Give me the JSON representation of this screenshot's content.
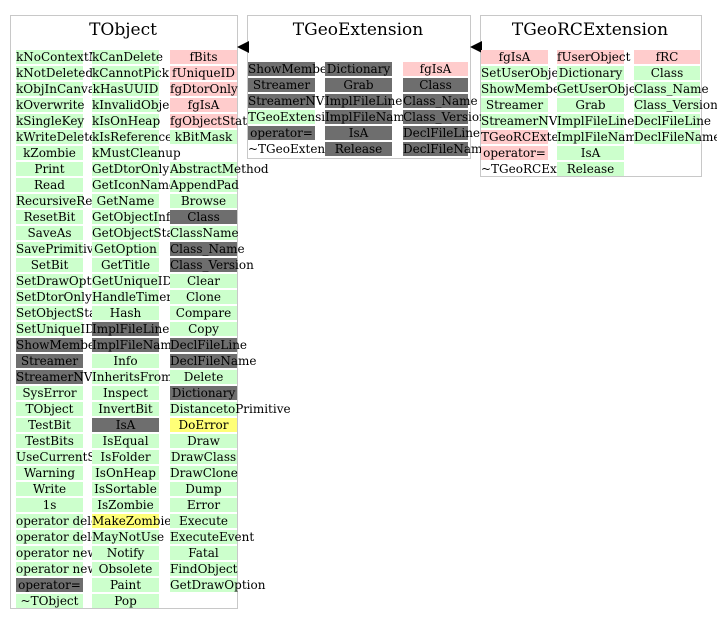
{
  "classes": [
    {
      "title": "TObject",
      "columns": [
        [
          [
            "kNoContextMenu",
            "g"
          ],
          [
            "kNotDeleted",
            "g"
          ],
          [
            "kObjInCanvas",
            "g"
          ],
          [
            "kOverwrite",
            "g"
          ],
          [
            "kSingleKey",
            "g"
          ],
          [
            "kWriteDelete",
            "g"
          ],
          [
            "kZombie",
            "g"
          ],
          [
            "Print",
            "g"
          ],
          [
            "Read",
            "g"
          ],
          [
            "RecursiveRemove",
            "g"
          ],
          [
            "ResetBit",
            "g"
          ],
          [
            "SaveAs",
            "g"
          ],
          [
            "SavePrimitive",
            "g"
          ],
          [
            "SetBit",
            "g"
          ],
          [
            "SetDrawOption",
            "g"
          ],
          [
            "SetDtorOnly",
            "g"
          ],
          [
            "SetObjectStat",
            "g"
          ],
          [
            "SetUniqueID",
            "g"
          ],
          [
            "ShowMembers",
            "d"
          ],
          [
            "Streamer",
            "d"
          ],
          [
            "StreamerNVirtual",
            "d"
          ],
          [
            "SysError",
            "g"
          ],
          [
            "TObject",
            "g"
          ],
          [
            "TestBit",
            "g"
          ],
          [
            "TestBits",
            "g"
          ],
          [
            "UseCurrentStyle",
            "g"
          ],
          [
            "Warning",
            "g"
          ],
          [
            "Write",
            "g"
          ],
          [
            "1s",
            "g"
          ],
          [
            "operator delete",
            "g"
          ],
          [
            "operator delete[]",
            "g"
          ],
          [
            "operator new",
            "g"
          ],
          [
            "operator new[]",
            "g"
          ],
          [
            "operator=",
            "d"
          ],
          [
            "~TObject",
            "g"
          ]
        ],
        [
          [
            "kCanDelete",
            "g"
          ],
          [
            "kCannotPick",
            "g"
          ],
          [
            "kHasUUID",
            "g"
          ],
          [
            "kInvalidObject",
            "g"
          ],
          [
            "kIsOnHeap",
            "g"
          ],
          [
            "kIsReferenced",
            "g"
          ],
          [
            "kMustCleanup",
            "g"
          ],
          [
            "GetDtorOnly",
            "g"
          ],
          [
            "GetIconName",
            "g"
          ],
          [
            "GetName",
            "g"
          ],
          [
            "GetObjectInfo",
            "g"
          ],
          [
            "GetObjectStat",
            "g"
          ],
          [
            "GetOption",
            "g"
          ],
          [
            "GetTitle",
            "g"
          ],
          [
            "GetUniqueID",
            "g"
          ],
          [
            "HandleTimer",
            "g"
          ],
          [
            "Hash",
            "g"
          ],
          [
            "ImplFileLine",
            "d"
          ],
          [
            "ImplFileName",
            "d"
          ],
          [
            "Info",
            "g"
          ],
          [
            "InheritsFrom",
            "g"
          ],
          [
            "Inspect",
            "g"
          ],
          [
            "InvertBit",
            "g"
          ],
          [
            "IsA",
            "d"
          ],
          [
            "IsEqual",
            "g"
          ],
          [
            "IsFolder",
            "g"
          ],
          [
            "IsOnHeap",
            "g"
          ],
          [
            "IsSortable",
            "g"
          ],
          [
            "IsZombie",
            "g"
          ],
          [
            "MakeZombie",
            "y"
          ],
          [
            "MayNotUse",
            "g"
          ],
          [
            "Notify",
            "g"
          ],
          [
            "Obsolete",
            "g"
          ],
          [
            "Paint",
            "g"
          ],
          [
            "Pop",
            "g"
          ]
        ],
        [
          [
            "fBits",
            "r"
          ],
          [
            "fUniqueID",
            "r"
          ],
          [
            "fgDtorOnly",
            "r"
          ],
          [
            "fgIsA",
            "r"
          ],
          [
            "fgObjectStat",
            "r"
          ],
          [
            "kBitMask",
            "g"
          ],
          [
            "",
            "w"
          ],
          [
            "AbstractMethod",
            "g"
          ],
          [
            "AppendPad",
            "g"
          ],
          [
            "Browse",
            "g"
          ],
          [
            "Class",
            "d"
          ],
          [
            "ClassName",
            "g"
          ],
          [
            "Class_Name",
            "d"
          ],
          [
            "Class_Version",
            "d"
          ],
          [
            "Clear",
            "g"
          ],
          [
            "Clone",
            "g"
          ],
          [
            "Compare",
            "g"
          ],
          [
            "Copy",
            "g"
          ],
          [
            "DeclFileLine",
            "d"
          ],
          [
            "DeclFileName",
            "d"
          ],
          [
            "Delete",
            "g"
          ],
          [
            "Dictionary",
            "d"
          ],
          [
            "DistancetoPrimitive",
            "g"
          ],
          [
            "DoError",
            "y"
          ],
          [
            "Draw",
            "g"
          ],
          [
            "DrawClass",
            "g"
          ],
          [
            "DrawClone",
            "g"
          ],
          [
            "Dump",
            "g"
          ],
          [
            "Error",
            "g"
          ],
          [
            "Execute",
            "g"
          ],
          [
            "ExecuteEvent",
            "g"
          ],
          [
            "Fatal",
            "g"
          ],
          [
            "FindObject",
            "g"
          ],
          [
            "GetDrawOption",
            "g"
          ]
        ]
      ]
    },
    {
      "title": "TGeoExtension",
      "columns": [
        [
          [
            "ShowMembers",
            "d"
          ],
          [
            "Streamer",
            "d"
          ],
          [
            "StreamerNVirtual",
            "d"
          ],
          [
            "TGeoExtension",
            "g"
          ],
          [
            "operator=",
            "d"
          ],
          [
            "~TGeoExtension",
            "w"
          ]
        ],
        [
          [
            "Dictionary",
            "d"
          ],
          [
            "Grab",
            "d"
          ],
          [
            "ImplFileLine",
            "d"
          ],
          [
            "ImplFileName",
            "d"
          ],
          [
            "IsA",
            "d"
          ],
          [
            "Release",
            "d"
          ]
        ],
        [
          [
            "fgIsA",
            "r"
          ],
          [
            "Class",
            "d"
          ],
          [
            "Class_Name",
            "d"
          ],
          [
            "Class_Version",
            "d"
          ],
          [
            "DeclFileLine",
            "d"
          ],
          [
            "DeclFileName",
            "d"
          ]
        ]
      ]
    },
    {
      "title": "TGeoRCExtension",
      "columns": [
        [
          [
            "fgIsA",
            "r"
          ],
          [
            "SetUserObject",
            "g"
          ],
          [
            "ShowMembers",
            "g"
          ],
          [
            "Streamer",
            "g"
          ],
          [
            "StreamerNVirtual",
            "g"
          ],
          [
            "TGeoRCExtension",
            "r"
          ],
          [
            "operator=",
            "r"
          ],
          [
            "~TGeoRCExtension",
            "w"
          ]
        ],
        [
          [
            "fUserObject",
            "r"
          ],
          [
            "Dictionary",
            "g"
          ],
          [
            "GetUserObject",
            "g"
          ],
          [
            "Grab",
            "g"
          ],
          [
            "ImplFileLine",
            "g"
          ],
          [
            "ImplFileName",
            "g"
          ],
          [
            "IsA",
            "g"
          ],
          [
            "Release",
            "g"
          ]
        ],
        [
          [
            "fRC",
            "r"
          ],
          [
            "Class",
            "g"
          ],
          [
            "Class_Name",
            "g"
          ],
          [
            "Class_Version",
            "g"
          ],
          [
            "DeclFileLine",
            "g"
          ],
          [
            "DeclFileName",
            "g"
          ]
        ]
      ]
    }
  ],
  "colors": {
    "green": "#ccffcc",
    "red": "#ffcccc",
    "dark": "#6e6e6e",
    "yellow": "#ffff77"
  }
}
